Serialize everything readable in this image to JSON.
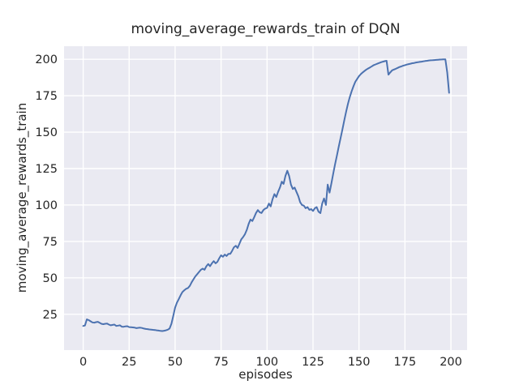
{
  "figure": {
    "background_color": "#ffffff"
  },
  "chart_data": {
    "type": "line",
    "title": "moving_average_rewards_train of DQN",
    "xlabel": "episodes",
    "ylabel": "moving_average_rewards_train",
    "x_ticks": [
      0,
      25,
      50,
      75,
      100,
      125,
      150,
      175,
      200
    ],
    "y_ticks": [
      25,
      50,
      75,
      100,
      125,
      150,
      175,
      200
    ],
    "xlim": [
      -10.4,
      208.8
    ],
    "ylim": [
      0.4,
      209.0
    ],
    "grid": true,
    "legend": "none",
    "style": {
      "plot_background": "#eaeaf2",
      "grid_color": "#ffffff",
      "line_color": "#4c72b0",
      "text_color": "#262626",
      "line_width": 2
    },
    "series": [
      {
        "name": "moving_average_rewards_train",
        "x_start": 0,
        "x_step": 1,
        "values": [
          17.0,
          17.3,
          21.5,
          21.0,
          20.2,
          19.4,
          19.2,
          19.6,
          19.8,
          19.1,
          18.4,
          18.2,
          18.5,
          18.6,
          17.9,
          17.4,
          17.7,
          17.9,
          17.0,
          17.2,
          17.4,
          16.5,
          16.4,
          16.7,
          16.8,
          16.2,
          16.1,
          16.0,
          15.8,
          15.5,
          15.7,
          15.8,
          15.6,
          15.2,
          14.9,
          14.8,
          14.6,
          14.5,
          14.3,
          14.2,
          14.0,
          13.8,
          13.6,
          13.5,
          13.7,
          14.0,
          14.4,
          15.2,
          18.5,
          24.0,
          29.5,
          33.0,
          35.5,
          38.0,
          40.3,
          41.5,
          42.5,
          43.0,
          44.5,
          47.0,
          49.0,
          51.0,
          52.5,
          54.0,
          55.5,
          56.3,
          55.5,
          58.0,
          59.5,
          58.0,
          60.0,
          61.5,
          60.0,
          61.0,
          63.5,
          65.5,
          64.5,
          66.0,
          65.0,
          66.5,
          66.5,
          68.5,
          71.0,
          72.0,
          70.5,
          73.5,
          76.5,
          78.0,
          80.0,
          83.0,
          87.0,
          90.0,
          89.0,
          91.5,
          94.5,
          96.5,
          95.0,
          94.5,
          96.5,
          97.5,
          98.0,
          101.0,
          99.0,
          104.0,
          107.5,
          105.5,
          109.0,
          112.0,
          116.0,
          114.5,
          120.0,
          123.5,
          120.0,
          114.0,
          111.0,
          112.0,
          109.0,
          106.0,
          102.0,
          100.0,
          99.5,
          97.8,
          98.5,
          96.7,
          97.2,
          95.9,
          97.8,
          98.5,
          95.4,
          94.4,
          101.0,
          104.5,
          100.0,
          114.0,
          108.5,
          115.0,
          121.5,
          128.0,
          134.0,
          140.0,
          146.0,
          152.0,
          158.0,
          164.0,
          169.5,
          174.0,
          178.0,
          181.5,
          184.5,
          186.5,
          188.5,
          189.8,
          191.0,
          192.0,
          193.0,
          193.7,
          194.4,
          195.2,
          196.0,
          196.5,
          197.0,
          197.5,
          198.0,
          198.4,
          198.7,
          199.0,
          189.5,
          191.0,
          192.4,
          193.0,
          193.5,
          194.1,
          194.7,
          195.1,
          195.6,
          196.0,
          196.4,
          196.7,
          197.0,
          197.3,
          197.5,
          197.8,
          198.0,
          198.2,
          198.4,
          198.6,
          198.8,
          199.0,
          199.2,
          199.3,
          199.4,
          199.5,
          199.6,
          199.7,
          199.8,
          199.9,
          200.0,
          200.0,
          191.0,
          177.0
        ]
      }
    ]
  }
}
